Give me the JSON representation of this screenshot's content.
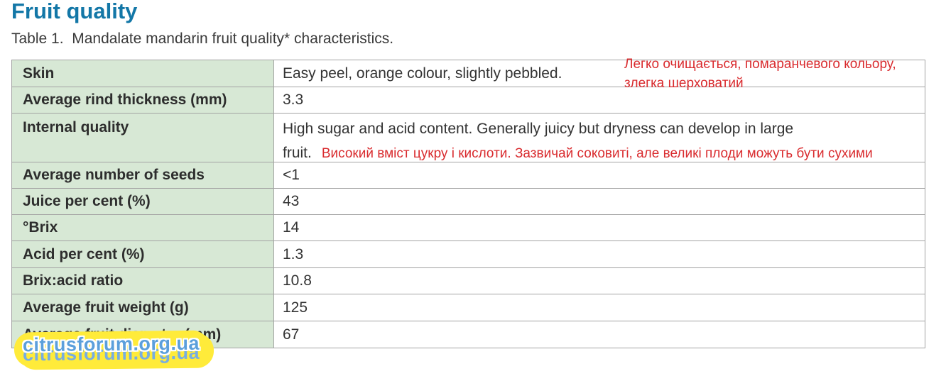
{
  "header": {
    "title": "Fruit quality",
    "caption": "Table 1.  Mandalate mandarin fruit quality* characteristics."
  },
  "table": {
    "rows": [
      {
        "label": "Skin",
        "value": "Easy peel, orange colour, slightly pebbled."
      },
      {
        "label": "Average rind thickness (mm)",
        "value": "3.3"
      },
      {
        "label": "Internal quality",
        "value": "High sugar and acid content. Generally juicy but dryness can develop in large fruit.",
        "value_line1": "High sugar and acid content. Generally juicy but dryness can develop in large",
        "value_line2": "fruit.",
        "annotation": "Високий вміст цукру і кислоти. Зазвичай соковиті, але великі плоди можуть бути сухими"
      },
      {
        "label": "Average number of seeds",
        "value": "<1"
      },
      {
        "label": "Juice per cent (%)",
        "value": "43"
      },
      {
        "label": "°Brix",
        "value": "14"
      },
      {
        "label": "Acid per cent (%)",
        "value": "1.3"
      },
      {
        "label": "Brix:acid ratio",
        "value": "10.8"
      },
      {
        "label": "Average fruit weight (g)",
        "value": "125"
      },
      {
        "label": "Average fruit diameter (mm)",
        "value": "67"
      }
    ]
  },
  "annotations": {
    "skin_line1": "Легко очищається, помаранчевого кольору,",
    "skin_line2": "злегка шерховатий"
  },
  "watermark": {
    "text": "citrusforum.org.ua"
  },
  "colors": {
    "title_teal": "#1377a7",
    "label_cell_green": "#d7e8d5",
    "table_border_gray": "#a3a3a3",
    "annotation_red": "#d92b2e",
    "body_text": "#333333",
    "watermark_blue": "#5b9fdb",
    "watermark_yellow": "#ffeb3a"
  }
}
